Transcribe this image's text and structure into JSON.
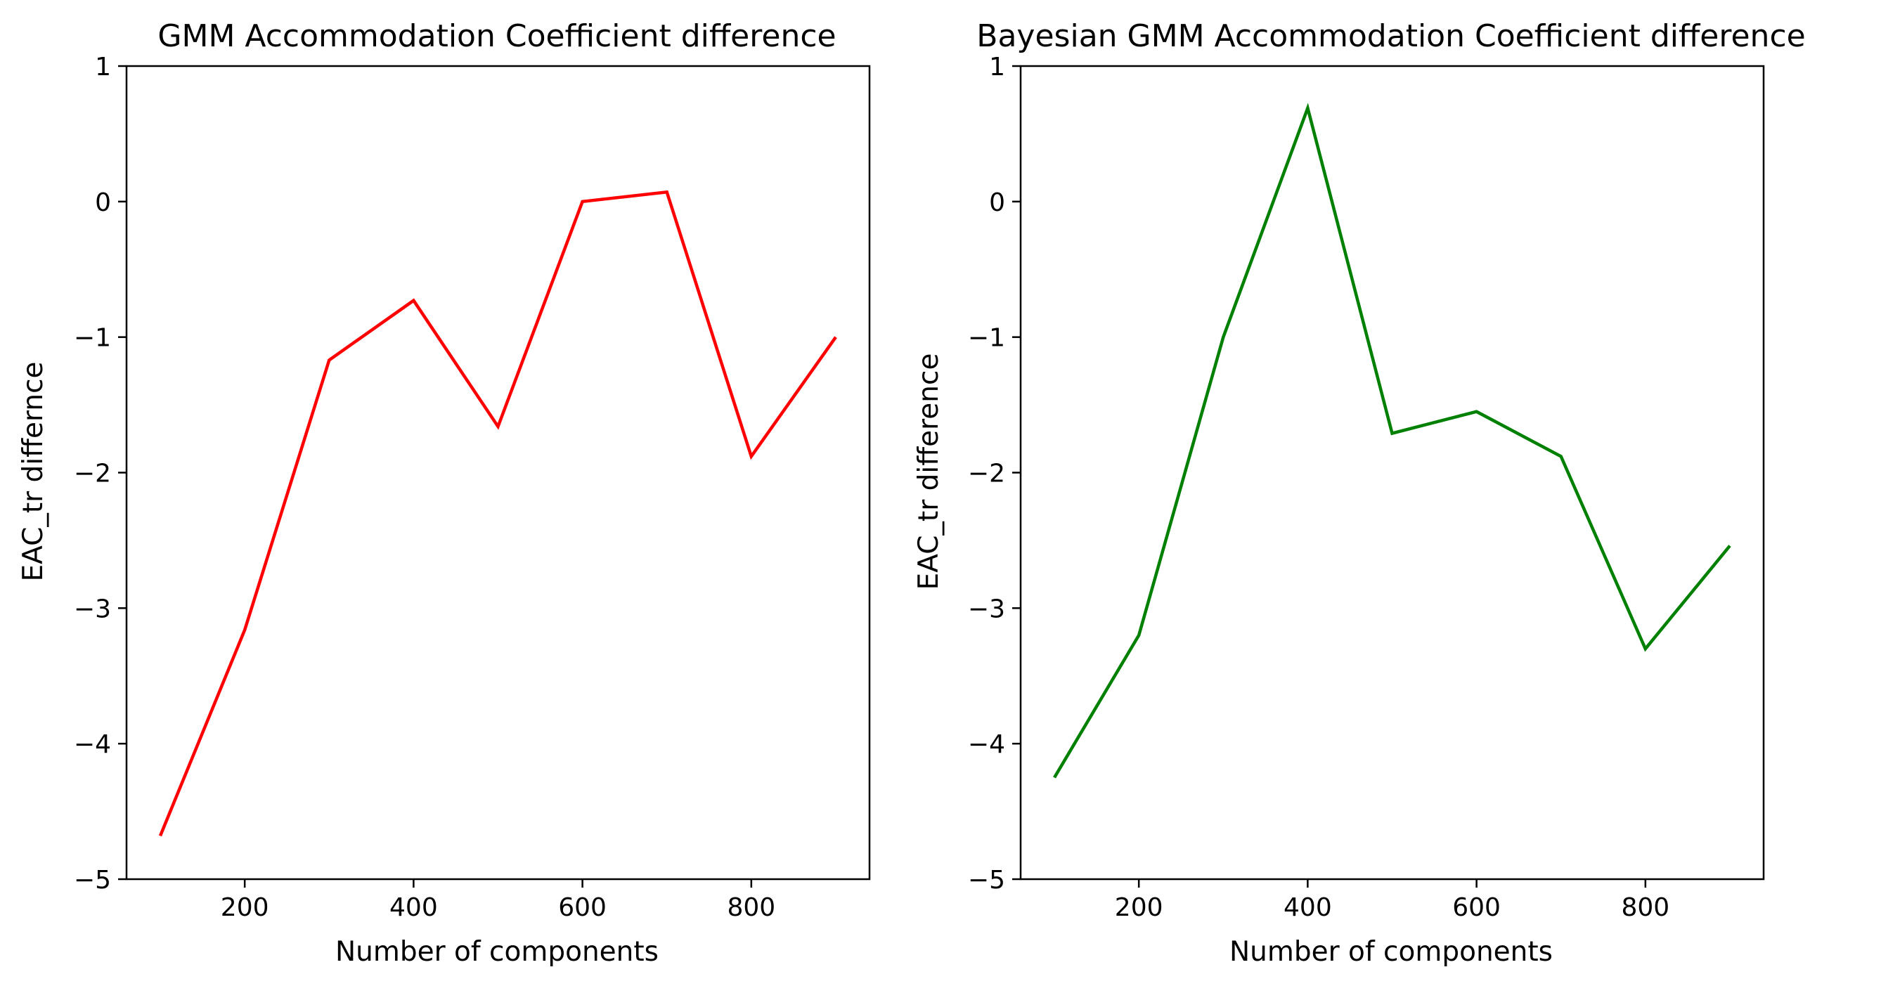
{
  "chart_data": [
    {
      "type": "line",
      "title": "GMM Accommodation Coefficient difference",
      "xlabel": "Number of components",
      "ylabel": "EAC_tr differnce",
      "xlim": [
        60,
        940
      ],
      "ylim": [
        -5,
        1
      ],
      "xticks": [
        200,
        400,
        600,
        800
      ],
      "yticks": [
        1,
        0,
        -1,
        -2,
        -3,
        -4,
        -5
      ],
      "grid": false,
      "series": [
        {
          "color": "#ff0000",
          "x": [
            100,
            200,
            300,
            400,
            500,
            600,
            700,
            800,
            900
          ],
          "y": [
            -4.68,
            -3.16,
            -1.17,
            -0.73,
            -1.66,
            0.0,
            0.07,
            -1.88,
            -1.0
          ]
        }
      ]
    },
    {
      "type": "line",
      "title": "Bayesian GMM Accommodation Coefficient difference",
      "xlabel": "Number of components",
      "ylabel": "EAC_tr difference",
      "xlim": [
        60,
        940
      ],
      "ylim": [
        -5,
        1
      ],
      "xticks": [
        200,
        400,
        600,
        800
      ],
      "yticks": [
        1,
        0,
        -1,
        -2,
        -3,
        -4,
        -5
      ],
      "grid": false,
      "series": [
        {
          "color": "#008000",
          "x": [
            100,
            200,
            300,
            400,
            500,
            600,
            700,
            800,
            900
          ],
          "y": [
            -4.25,
            -3.2,
            -1.0,
            0.69,
            -1.71,
            -1.55,
            -1.88,
            -3.3,
            -2.54
          ]
        }
      ]
    }
  ]
}
